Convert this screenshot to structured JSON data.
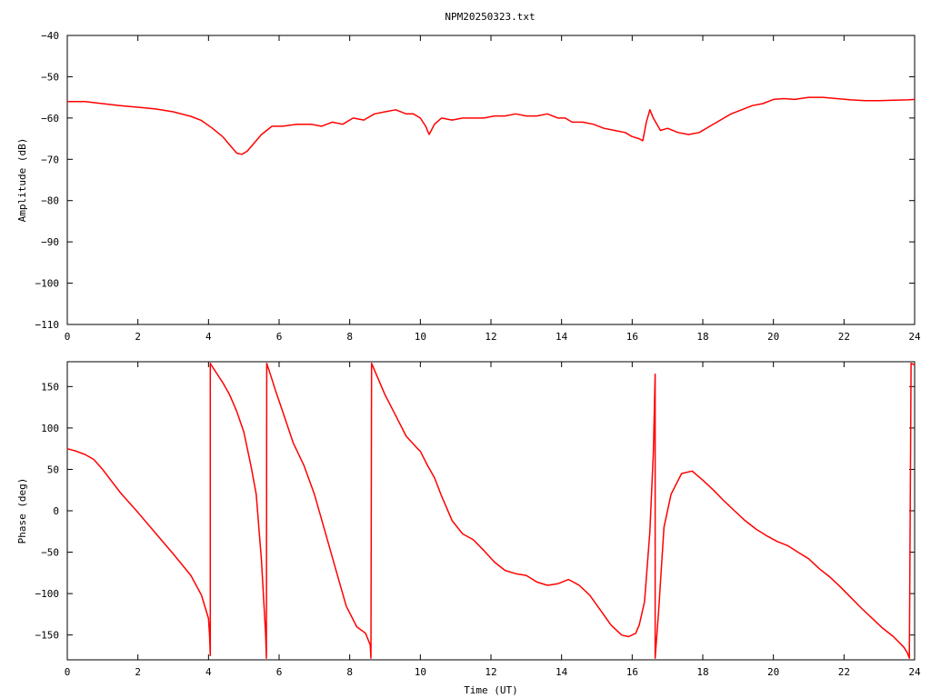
{
  "title": "NPM20250323.txt",
  "line_color": "#ff0000",
  "chart_data": [
    {
      "type": "line",
      "title": "NPM20250323.txt",
      "xlabel": "",
      "ylabel": "Amplitude (dB)",
      "xlim": [
        0,
        24
      ],
      "ylim": [
        -110,
        -40
      ],
      "xticks": [
        0,
        2,
        4,
        6,
        8,
        10,
        12,
        14,
        16,
        18,
        20,
        22,
        24
      ],
      "yticks": [
        -110,
        -100,
        -90,
        -80,
        -70,
        -60,
        -50,
        -40
      ],
      "xtick_labels": [
        "0",
        "2",
        "4",
        "6",
        "8",
        "10",
        "12",
        "14",
        "16",
        "18",
        "20",
        "22",
        "24"
      ],
      "ytick_labels": [
        "−110",
        "−100",
        "−90",
        "−80",
        "−70",
        "−60",
        "−50",
        "−40"
      ],
      "grid": false,
      "series": [
        {
          "x": [
            0,
            0.5,
            1,
            1.5,
            2,
            2.5,
            3,
            3.5,
            3.8,
            4.1,
            4.4,
            4.6,
            4.8,
            4.95,
            5.1,
            5.3,
            5.5,
            5.8,
            6.1,
            6.5,
            6.9,
            7.2,
            7.5,
            7.8,
            8.1,
            8.4,
            8.7,
            9,
            9.3,
            9.6,
            9.8,
            10,
            10.15,
            10.25,
            10.4,
            10.6,
            10.9,
            11.2,
            11.5,
            11.8,
            12.1,
            12.4,
            12.7,
            13,
            13.3,
            13.6,
            13.9,
            14.1,
            14.3,
            14.6,
            14.9,
            15.2,
            15.5,
            15.8,
            16.0,
            16.2,
            16.3,
            16.4,
            16.5,
            16.6,
            16.8,
            17.0,
            17.3,
            17.6,
            17.9,
            18.2,
            18.5,
            18.8,
            19.1,
            19.4,
            19.7,
            20,
            20.3,
            20.6,
            21,
            21.4,
            21.8,
            22.2,
            22.6,
            23,
            23.4,
            23.8,
            24
          ],
          "y": [
            -56,
            -56,
            -56.5,
            -57,
            -57.4,
            -57.8,
            -58.5,
            -59.6,
            -60.6,
            -62.4,
            -64.5,
            -66.5,
            -68.5,
            -68.8,
            -68,
            -66,
            -64,
            -62,
            -62,
            -61.5,
            -61.5,
            -62,
            -61,
            -61.5,
            -60,
            -60.5,
            -59,
            -58.5,
            -58,
            -59,
            -59,
            -60,
            -62,
            -64,
            -61.5,
            -60,
            -60.5,
            -60,
            -60,
            -60,
            -59.5,
            -59.5,
            -59,
            -59.5,
            -59.5,
            -59,
            -60,
            -60,
            -61,
            -61,
            -61.5,
            -62.5,
            -63,
            -63.5,
            -64.5,
            -65,
            -65.5,
            -61,
            -58,
            -60,
            -63,
            -62.5,
            -63.5,
            -64,
            -63.5,
            -62,
            -60.5,
            -59,
            -58,
            -57,
            -56.5,
            -55.5,
            -55.3,
            -55.5,
            -55,
            -55,
            -55.3,
            -55.6,
            -55.8,
            -55.8,
            -55.7,
            -55.6,
            -55.5
          ]
        }
      ]
    },
    {
      "type": "line",
      "title": "",
      "xlabel": "Time (UT)",
      "ylabel": "Phase (deg)",
      "xlim": [
        0,
        24
      ],
      "ylim": [
        -180,
        180
      ],
      "xticks": [
        0,
        2,
        4,
        6,
        8,
        10,
        12,
        14,
        16,
        18,
        20,
        22,
        24
      ],
      "yticks": [
        -150,
        -100,
        -50,
        0,
        50,
        100,
        150
      ],
      "xtick_labels": [
        "0",
        "2",
        "4",
        "6",
        "8",
        "10",
        "12",
        "14",
        "16",
        "18",
        "20",
        "22",
        "24"
      ],
      "ytick_labels": [
        "−150",
        "−100",
        "−50",
        "0",
        "50",
        "100",
        "150"
      ],
      "grid": false,
      "series": [
        {
          "x": [
            0,
            0.25,
            0.5,
            0.75,
            1,
            1.5,
            2,
            2.5,
            3,
            3.5,
            3.8,
            4,
            4.03,
            4.05,
            4.05,
            4.08,
            4.2,
            4.4,
            4.6,
            4.8,
            5,
            5.2,
            5.35,
            5.5,
            5.62,
            5.64,
            5.65,
            5.75,
            5.9,
            6.1,
            6.4,
            6.7,
            7,
            7.3,
            7.6,
            7.9,
            8.2,
            8.45,
            8.58,
            8.6,
            8.62,
            8.75,
            9,
            9.3,
            9.6,
            9.9,
            10,
            10.2,
            10.4,
            10.6,
            10.9,
            11.2,
            11.5,
            11.8,
            12.1,
            12.4,
            12.7,
            13,
            13.3,
            13.6,
            13.9,
            14.2,
            14.5,
            14.8,
            15.1,
            15.4,
            15.7,
            15.9,
            16.1,
            16.2,
            16.35,
            16.5,
            16.6,
            16.65,
            16.65,
            16.75,
            16.9,
            17.1,
            17.4,
            17.7,
            18,
            18.3,
            18.6,
            18.9,
            19.2,
            19.5,
            19.8,
            20.1,
            20.4,
            20.7,
            21,
            21.3,
            21.6,
            21.9,
            22.2,
            22.5,
            22.8,
            23.1,
            23.4,
            23.7,
            23.8,
            23.85,
            23.9,
            24
          ],
          "y": [
            75,
            72,
            68,
            62,
            50,
            22,
            -2,
            -27,
            -52,
            -78,
            -102,
            -130,
            -150,
            -175,
            178,
            176,
            168,
            155,
            140,
            120,
            95,
            55,
            20,
            -60,
            -150,
            -178,
            178,
            165,
            145,
            120,
            82,
            55,
            20,
            -25,
            -70,
            -115,
            -140,
            -148,
            -162,
            -178,
            178,
            165,
            140,
            115,
            90,
            76,
            72,
            55,
            40,
            18,
            -12,
            -28,
            -35,
            -48,
            -62,
            -72,
            -76,
            -78,
            -86,
            -90,
            -88,
            -83,
            -90,
            -102,
            -120,
            -138,
            -150,
            -152,
            -148,
            -138,
            -110,
            -25,
            70,
            165,
            -178,
            -120,
            -20,
            20,
            45,
            48,
            37,
            25,
            12,
            0,
            -12,
            -22,
            -30,
            -37,
            -42,
            -50,
            -58,
            -70,
            -80,
            -92,
            -105,
            -118,
            -130,
            -142,
            -152,
            -165,
            -172,
            -178,
            178,
            176
          ]
        }
      ]
    }
  ]
}
